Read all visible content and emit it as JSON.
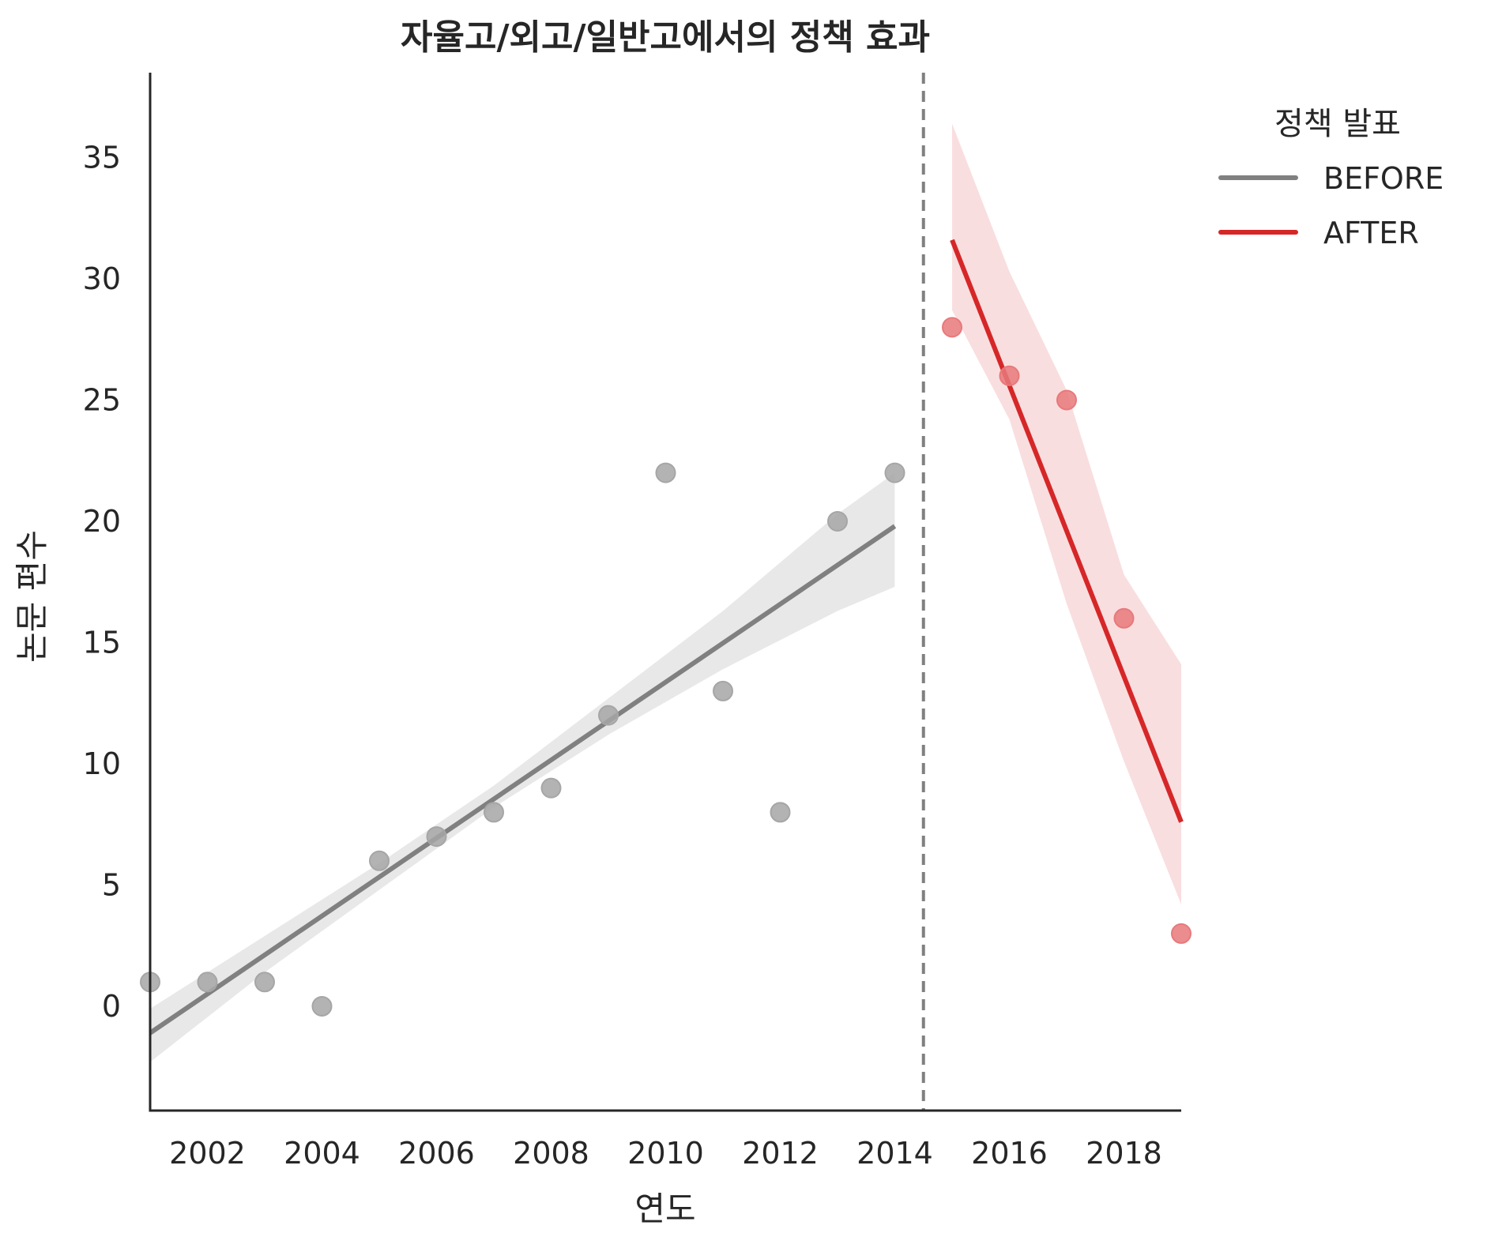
{
  "chart_data": {
    "type": "scatter",
    "title": "자율고/외고/일반고에서의 정책 효과",
    "xlabel": "연도",
    "ylabel": "논문 편수",
    "xlim": [
      2001,
      2019
    ],
    "ylim": [
      -4.3,
      38.5
    ],
    "xticks": [
      2002,
      2004,
      2006,
      2008,
      2010,
      2012,
      2014,
      2016,
      2018
    ],
    "yticks": [
      0,
      5,
      10,
      15,
      20,
      25,
      30,
      35
    ],
    "grid": false,
    "policy_line_x": 2014.5,
    "legend": {
      "title": "정책 발표",
      "placement": "upper-right outside",
      "entries": [
        {
          "label": "BEFORE",
          "color": "#808080"
        },
        {
          "label": "AFTER",
          "color": "#d62728"
        }
      ]
    },
    "series": [
      {
        "name": "BEFORE",
        "color": "#808080",
        "marker_color": "#a6a6a6",
        "band_color": "#e0e0e0",
        "points": [
          {
            "x": 2001,
            "y": 1
          },
          {
            "x": 2002,
            "y": 1
          },
          {
            "x": 2003,
            "y": 1
          },
          {
            "x": 2004,
            "y": 0
          },
          {
            "x": 2005,
            "y": 6
          },
          {
            "x": 2006,
            "y": 7
          },
          {
            "x": 2007,
            "y": 8
          },
          {
            "x": 2008,
            "y": 9
          },
          {
            "x": 2009,
            "y": 12
          },
          {
            "x": 2010,
            "y": 22
          },
          {
            "x": 2011,
            "y": 13
          },
          {
            "x": 2012,
            "y": 8
          },
          {
            "x": 2013,
            "y": 20
          },
          {
            "x": 2014,
            "y": 22
          }
        ],
        "fit_line": [
          {
            "x": 2001,
            "y": -1.1
          },
          {
            "x": 2014,
            "y": 19.8
          }
        ],
        "confidence_band": [
          {
            "x": 2001,
            "lo": -2.3,
            "hi": -0.1
          },
          {
            "x": 2003,
            "lo": 1.4,
            "hi": 2.9
          },
          {
            "x": 2005,
            "lo": 4.8,
            "hi": 5.9
          },
          {
            "x": 2007,
            "lo": 8.2,
            "hi": 9.1
          },
          {
            "x": 2009,
            "lo": 11.2,
            "hi": 12.7
          },
          {
            "x": 2011,
            "lo": 13.9,
            "hi": 16.3
          },
          {
            "x": 2013,
            "lo": 16.3,
            "hi": 20.3
          },
          {
            "x": 2014,
            "lo": 17.3,
            "hi": 22.0
          }
        ]
      },
      {
        "name": "AFTER",
        "color": "#d62728",
        "marker_color": "#e8797b",
        "band_color": "#f7d3d4",
        "points": [
          {
            "x": 2015,
            "y": 28
          },
          {
            "x": 2016,
            "y": 26
          },
          {
            "x": 2017,
            "y": 25
          },
          {
            "x": 2018,
            "y": 16
          },
          {
            "x": 2019,
            "y": 3
          }
        ],
        "fit_line": [
          {
            "x": 2015,
            "y": 31.6
          },
          {
            "x": 2019,
            "y": 7.6
          }
        ],
        "confidence_band": [
          {
            "x": 2015,
            "lo": 28.7,
            "hi": 36.4
          },
          {
            "x": 2016,
            "lo": 24.2,
            "hi": 30.3
          },
          {
            "x": 2017,
            "lo": 16.6,
            "hi": 25.4
          },
          {
            "x": 2018,
            "lo": 10.1,
            "hi": 17.8
          },
          {
            "x": 2019,
            "lo": 4.2,
            "hi": 14.1
          }
        ]
      }
    ]
  }
}
